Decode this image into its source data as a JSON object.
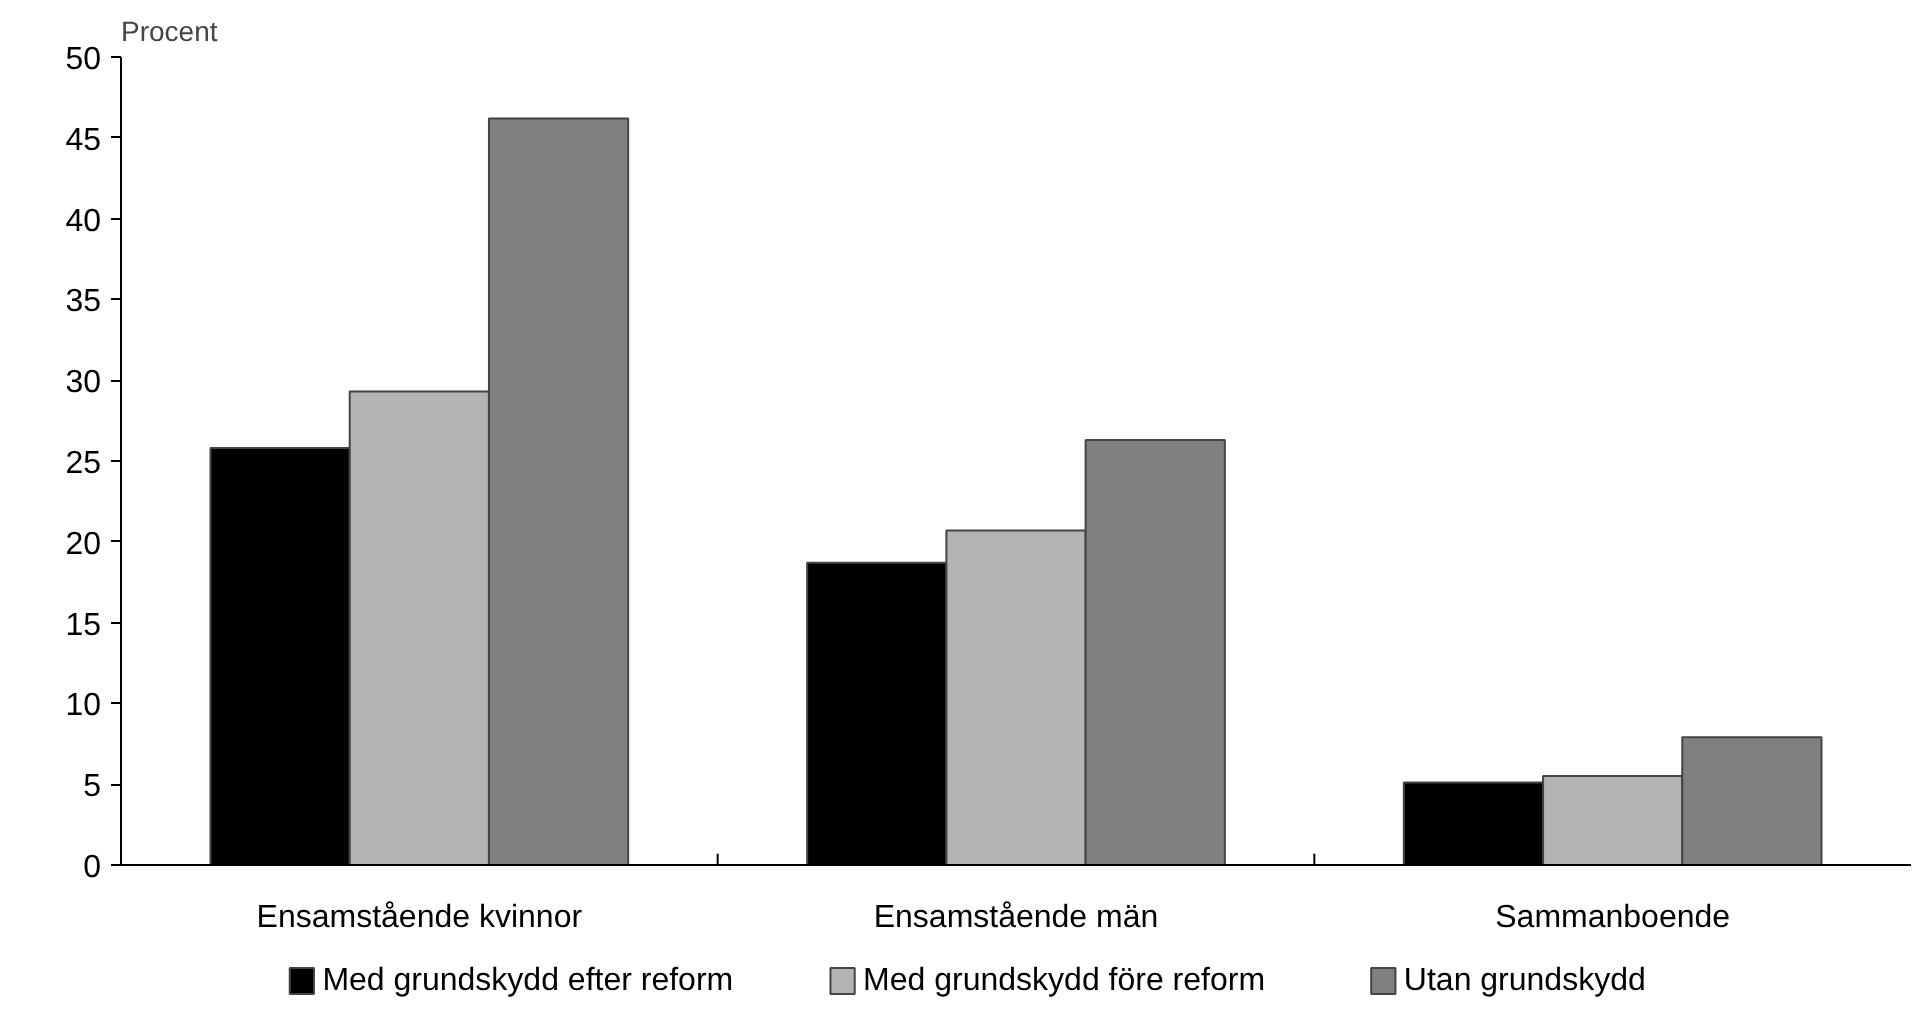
{
  "chart_data": {
    "type": "bar",
    "ylabel": "Procent",
    "categories": [
      "Ensamstående kvinnor",
      "Ensamstående män",
      "Sammanboende"
    ],
    "series": [
      {
        "name": "Med grundskydd efter reform",
        "color": "#000000",
        "values": [
          25.8,
          18.7,
          5.1
        ]
      },
      {
        "name": "Med grundskydd före reform",
        "color": "#b3b3b3",
        "values": [
          29.3,
          20.7,
          5.5
        ]
      },
      {
        "name": "Utan grundskydd",
        "color": "#808080",
        "values": [
          46.2,
          26.3,
          7.9
        ]
      }
    ],
    "ylim": [
      0,
      50
    ],
    "yticks": [
      0,
      5,
      10,
      15,
      20,
      25,
      30,
      35,
      40,
      45,
      50
    ],
    "grid": false,
    "legend": "bottom"
  }
}
